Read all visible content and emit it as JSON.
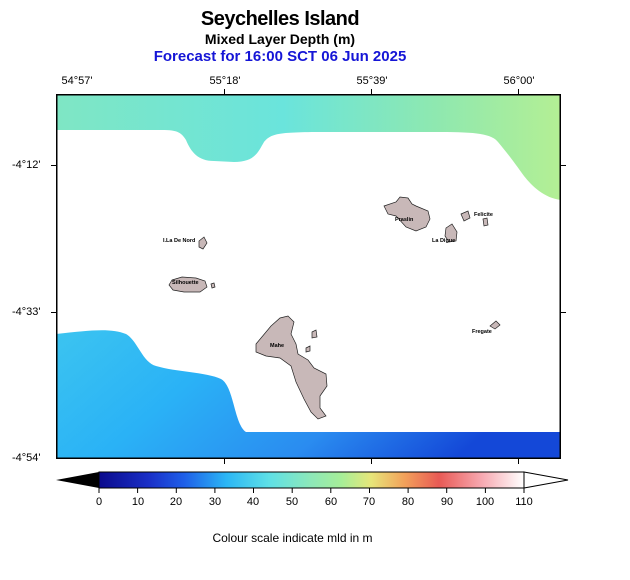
{
  "header": {
    "title": "Seychelles Island",
    "subtitle": "Mixed Layer Depth (m)",
    "forecast": "Forecast for  16:00 SCT 06 Jun 2025"
  },
  "axes": {
    "lon_labels": [
      "54°57'",
      "55°18'",
      "55°39'",
      "56°00'"
    ],
    "lat_labels": [
      "-4°12'",
      "-4°33'",
      "-4°54'"
    ]
  },
  "islands": {
    "praslin": "Praslin",
    "la_digue": "La Digue",
    "felicite": "Felicite",
    "ile_du_nord": "I.La De Nord",
    "silhouette": "Silhouette",
    "mahe": "Mahe",
    "fregate": "Fregate"
  },
  "colorbar": {
    "labels": [
      "0",
      "10",
      "20",
      "30",
      "40",
      "50",
      "60",
      "70",
      "80",
      "90",
      "100",
      "110"
    ],
    "title": "Colour scale indicate mld in m",
    "colors": {
      "deep_blue": "#0a0a8c",
      "blue": "#1f5fe8",
      "sky": "#2bb6f5",
      "cyan": "#5ee0e6",
      "green": "#a6ee98",
      "yellow": "#e6e67a",
      "orange": "#f2a05a",
      "red": "#e85a55",
      "pink": "#f7a8b0",
      "white": "#ffffff"
    }
  }
}
